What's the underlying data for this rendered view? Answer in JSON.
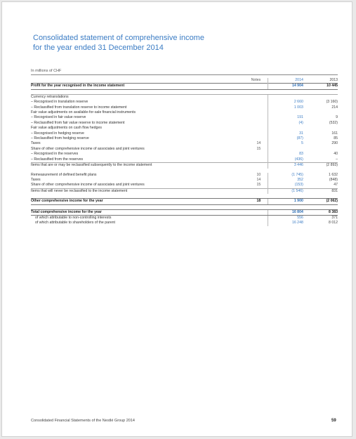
{
  "title_line1": "Consolidated statement of comprehensive income",
  "title_line2": "for the year ended 31 December 2014",
  "unit": "In millions of CHF",
  "header": {
    "notes": "Notes",
    "y2014": "2014",
    "y2013": "2013"
  },
  "rows": [
    {
      "label": "Profit for the year recognised in the income statement",
      "note": "",
      "v2014": "14 904",
      "v2013": "10 445",
      "style": "bold"
    },
    {
      "label": "Currency retranslations",
      "note": "",
      "v2014": "",
      "v2013": "",
      "style": ""
    },
    {
      "label": "– Recognised in translation reserve",
      "note": "",
      "v2014": "2 660",
      "v2013": "(3 160)",
      "style": ""
    },
    {
      "label": "– Reclassified from translation reserve to income statement",
      "note": "",
      "v2014": "1 003",
      "v2013": "214",
      "style": ""
    },
    {
      "label": "Fair value adjustments on available-for-sale financial instruments",
      "note": "",
      "v2014": "",
      "v2013": "",
      "style": ""
    },
    {
      "label": "– Recognised in fair value reserve",
      "note": "",
      "v2014": "191",
      "v2013": "9",
      "style": ""
    },
    {
      "label": "– Reclassified from fair value reserve to income statement",
      "note": "",
      "v2014": "(4)",
      "v2013": "(532)",
      "style": ""
    },
    {
      "label": "Fair value adjustments on cash flow hedges",
      "note": "",
      "v2014": "",
      "v2013": "",
      "style": ""
    },
    {
      "label": "– Recognised in hedging reserve",
      "note": "",
      "v2014": "31",
      "v2013": "161",
      "style": ""
    },
    {
      "label": "– Reclassified from hedging reserve",
      "note": "",
      "v2014": "(87)",
      "v2013": "85",
      "style": ""
    },
    {
      "label": "Taxes",
      "note": "14",
      "v2014": "5",
      "v2013": "290",
      "style": ""
    },
    {
      "label": "Share of other comprehensive income of associates and joint ventures",
      "note": "15",
      "v2014": "",
      "v2013": "",
      "style": ""
    },
    {
      "label": "– Recognised in the reserves",
      "note": "",
      "v2014": "83",
      "v2013": "40",
      "style": ""
    },
    {
      "label": "– Reclassified from the reserves",
      "note": "",
      "v2014": "(436)",
      "v2013": "–",
      "style": ""
    },
    {
      "label": "Items that are or may be reclassified subsequently to the income statement",
      "note": "",
      "v2014": "3 446",
      "v2013": "(2 893)",
      "style": ""
    },
    {
      "label": "Remeasurement of defined benefit plans",
      "note": "10",
      "v2014": "(1 745)",
      "v2013": "1 632",
      "style": ""
    },
    {
      "label": "Taxes",
      "note": "14",
      "v2014": "352",
      "v2013": "(848)",
      "style": ""
    },
    {
      "label": "Share of other comprehensive income of associates and joint ventures",
      "note": "15",
      "v2014": "(153)",
      "v2013": "47",
      "style": ""
    },
    {
      "label": "Items that will never be reclassified to the income statement",
      "note": "",
      "v2014": "(1 546)",
      "v2013": "831",
      "style": ""
    },
    {
      "label": "Other comprehensive income for the year",
      "note": "18",
      "v2014": "1 900",
      "v2013": "(2 062)",
      "style": "bold"
    },
    {
      "label": "Total comprehensive income for the year",
      "note": "",
      "v2014": "16 804",
      "v2013": "8 383",
      "style": "bold"
    },
    {
      "label": "of which attributable to non-controlling interests",
      "note": "",
      "v2014": "556",
      "v2013": "371",
      "style": ""
    },
    {
      "label": "of which attributable to shareholders of the parent",
      "note": "",
      "v2014": "16 248",
      "v2013": "8 012",
      "style": ""
    }
  ],
  "footer": "Consolidated Financial Statements of the Nestlé Group 2014",
  "page_number": "59",
  "colors": {
    "accent": "#3b7cc4"
  }
}
